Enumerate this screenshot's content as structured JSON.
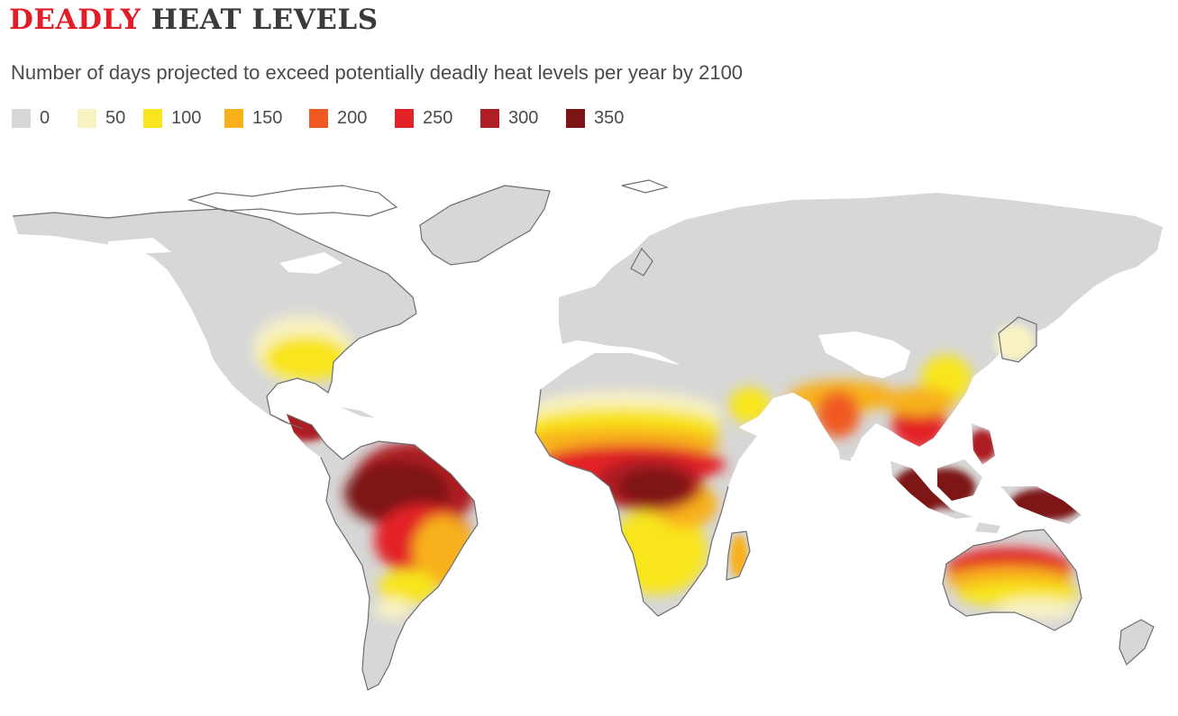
{
  "header": {
    "title_highlight": "DEADLY",
    "title_rest": "HEAT LEVELS",
    "subtitle": "Number of days projected to exceed potentially deadly heat levels per year by 2100"
  },
  "legend": {
    "items": [
      {
        "label": "0",
        "color": "#d7d7d7"
      },
      {
        "label": "50",
        "color": "#f8f2c3"
      },
      {
        "label": "100",
        "color": "#f8e51e"
      },
      {
        "label": "150",
        "color": "#f8b11b"
      },
      {
        "label": "200",
        "color": "#f05a22"
      },
      {
        "label": "250",
        "color": "#e32227"
      },
      {
        "label": "300",
        "color": "#ad1f24"
      },
      {
        "label": "350",
        "color": "#7d1416"
      }
    ]
  },
  "colors": {
    "land": "#d7d7d7",
    "coast": "#6e6e6e",
    "ice": "#ffffff",
    "title_accent": "#e11d27",
    "title_dark": "#3b3b3b"
  }
}
